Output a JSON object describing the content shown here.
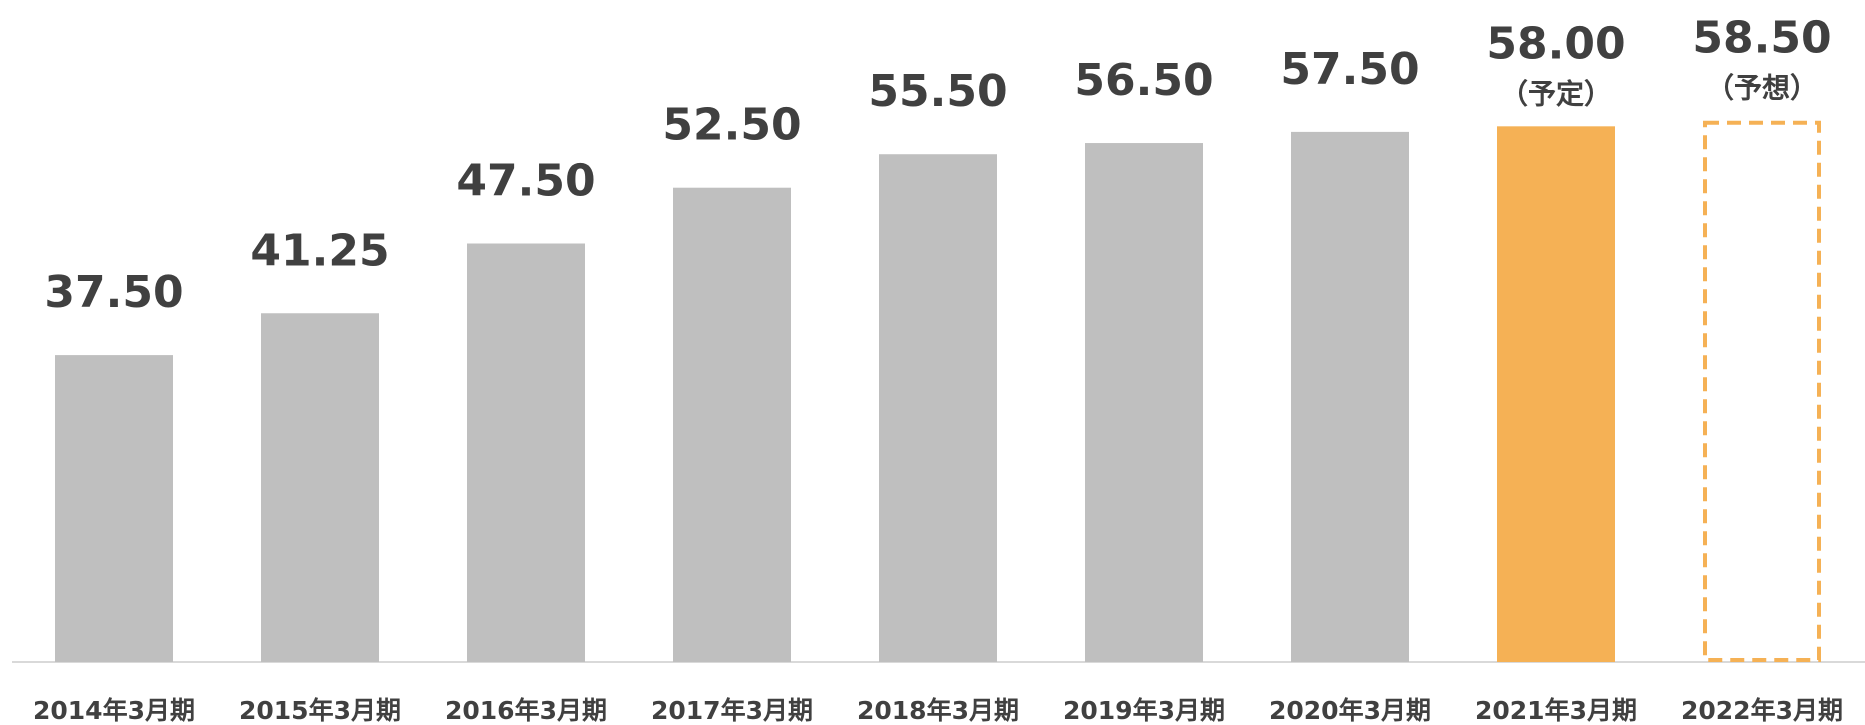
{
  "chart_data": {
    "type": "bar",
    "categories": [
      "2014年3月期",
      "2015年3月期",
      "2016年3月期",
      "2017年3月期",
      "2018年3月期",
      "2019年3月期",
      "2020年3月期",
      "2021年3月期",
      "2022年3月期"
    ],
    "values": [
      37.5,
      41.25,
      47.5,
      52.5,
      55.5,
      56.5,
      57.5,
      58,
      58.5
    ],
    "value_labels": [
      "37.50",
      "41.25",
      "47.50",
      "52.50",
      "55.50",
      "56.50",
      "57.50",
      "58.00",
      "58.50"
    ],
    "notes": [
      null,
      null,
      null,
      null,
      null,
      null,
      null,
      "（予定）",
      "（予想）"
    ],
    "colors": [
      "#bfbfbf",
      "#bfbfbf",
      "#bfbfbf",
      "#bfbfbf",
      "#bfbfbf",
      "#bfbfbf",
      "#bfbfbf",
      "#f5b155",
      "#f5b155"
    ],
    "bar_styles": [
      "solid",
      "solid",
      "solid",
      "solid",
      "solid",
      "solid",
      "solid",
      "solid",
      "dashed"
    ],
    "ylim": [
      10,
      60
    ]
  }
}
